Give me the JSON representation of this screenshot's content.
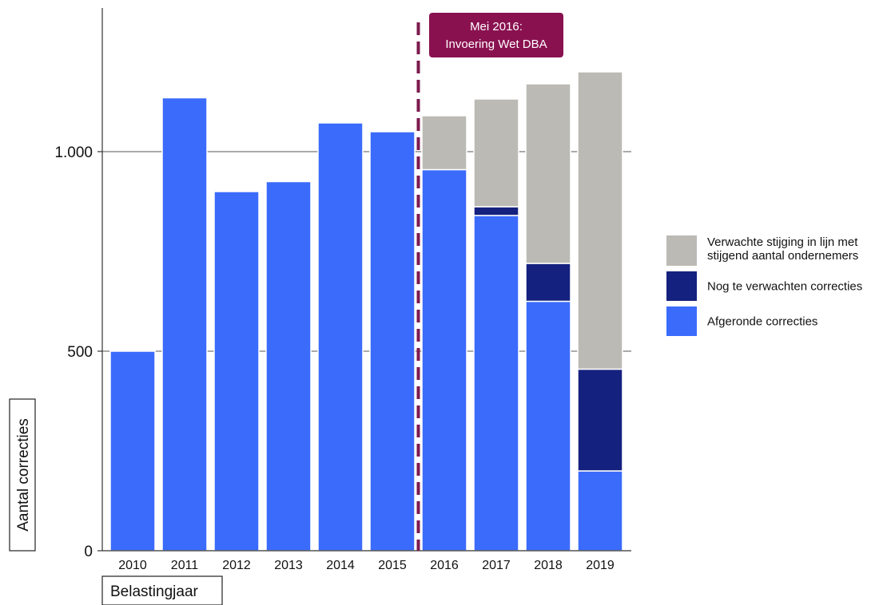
{
  "chart_data": {
    "type": "bar",
    "stacked": true,
    "categories": [
      "2010",
      "2011",
      "2012",
      "2013",
      "2014",
      "2015",
      "2016",
      "2017",
      "2018",
      "2019"
    ],
    "series": [
      {
        "name": "Afgeronde correcties",
        "color": "#3b6bfb",
        "values": [
          500,
          1135,
          900,
          925,
          1072,
          1050,
          955,
          840,
          625,
          200
        ]
      },
      {
        "name": "Nog te verwachten correcties",
        "color": "#15217e",
        "values": [
          0,
          0,
          0,
          0,
          0,
          0,
          0,
          22,
          95,
          255
        ]
      },
      {
        "name": "Verwachte stijging in lijn met stijgend aantal ondernemers",
        "color": "#bcbab5",
        "values": [
          0,
          0,
          0,
          0,
          0,
          0,
          135,
          270,
          450,
          745
        ]
      }
    ],
    "ylim": [
      0,
      1200
    ],
    "yticks": [
      0,
      500,
      1000
    ],
    "ytick_labels": [
      "0",
      "500",
      "1.000"
    ],
    "gridlines_y": [
      500,
      1000
    ],
    "ylabel": "Aantal correcties",
    "xlabel": "Belastingjaar",
    "legend": {
      "placement": "right",
      "entries": [
        {
          "lines": [
            "Verwachte stijging in lijn met",
            "stijgend aantal ondernemers"
          ],
          "color": "#bcbab5"
        },
        {
          "lines": [
            "Nog te verwachten correcties"
          ],
          "color": "#15217e"
        },
        {
          "lines": [
            "Afgeronde correcties"
          ],
          "color": "#3b6bfb"
        }
      ]
    },
    "annotation": {
      "after_category": "2015",
      "lines": [
        "Mei 2016:",
        "Invoering Wet DBA"
      ],
      "line_color": "#7d1a4f",
      "box_color": "#8a1150"
    }
  }
}
